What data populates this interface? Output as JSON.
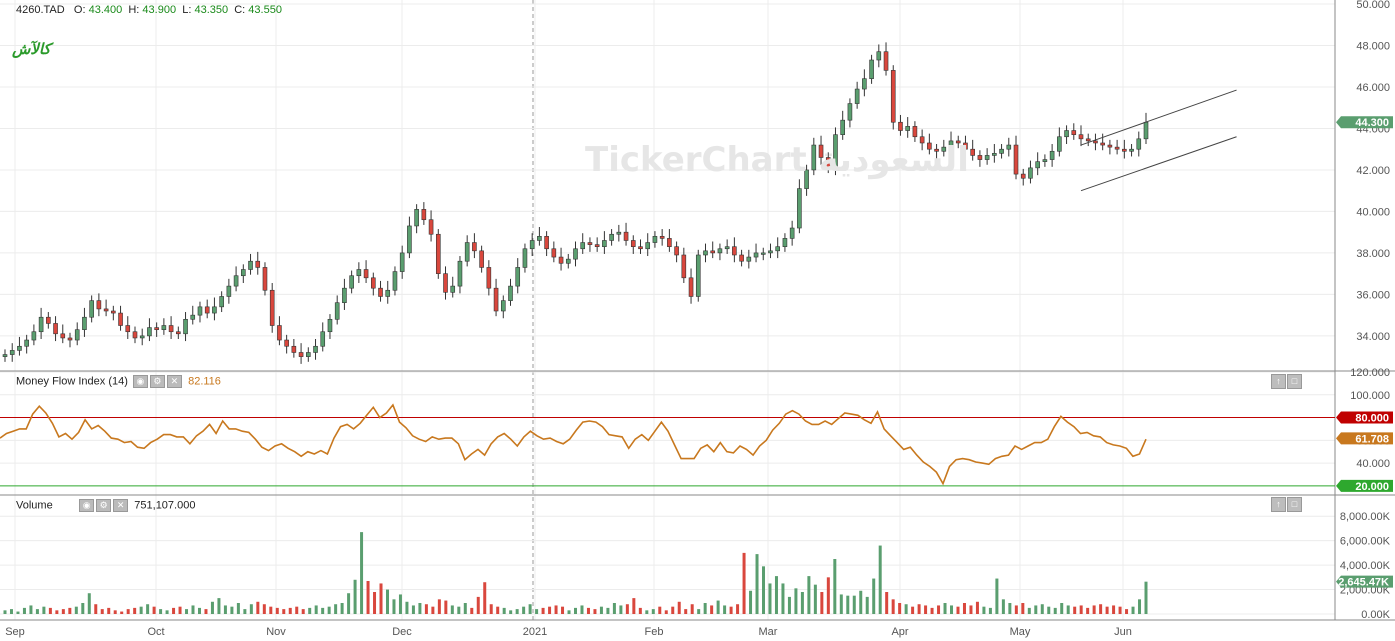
{
  "header": {
    "symbol": "4260.TAD",
    "open_label": "O:",
    "open": "43.400",
    "high_label": "H:",
    "high": "43.900",
    "low_label": "L:",
    "low": "43.350",
    "close_label": "C:",
    "close": "43.550"
  },
  "logo_text": "كالآش",
  "watermark_text": "TickerChart السعودية",
  "colors": {
    "up": "#5a9e6f",
    "down": "#d9473d",
    "mfi_line": "#c8781e",
    "mfi_upper": "#c00000",
    "mfi_lower": "#2ea82e",
    "last_price_badge": "#5a9e6f"
  },
  "mfi_panel": {
    "label": "Money Flow Index",
    "period": "(14)",
    "value": "82.116",
    "upper_badge": "80.000",
    "lower_badge": "20.000",
    "current_badge": "61.708"
  },
  "volume_panel": {
    "label": "Volume",
    "value": "751,107.000",
    "current_badge": "2,645.47K"
  },
  "price_badge": "44.300",
  "chart_data": [
    {
      "type": "candlestick",
      "title": "4260.TAD",
      "x_labels": [
        "Sep",
        "Oct",
        "Nov",
        "Dec",
        "2021",
        "Feb",
        "Mar",
        "Apr",
        "May",
        "Jun"
      ],
      "y_ticks": [
        "34.000",
        "36.000",
        "38.000",
        "40.000",
        "42.000",
        "44.000",
        "46.000",
        "48.000",
        "50.000"
      ],
      "ylim": [
        32.5,
        50.0
      ],
      "close_series": [
        33.1,
        33.3,
        33.5,
        33.8,
        34.2,
        34.9,
        34.6,
        34.1,
        33.9,
        33.8,
        34.3,
        34.9,
        35.7,
        35.3,
        35.2,
        35.1,
        34.5,
        34.2,
        33.9,
        34.0,
        34.4,
        34.3,
        34.5,
        34.2,
        34.1,
        34.8,
        35.0,
        35.4,
        35.1,
        35.4,
        35.9,
        36.4,
        36.9,
        37.2,
        37.6,
        37.3,
        36.2,
        34.5,
        33.8,
        33.5,
        33.2,
        33.0,
        33.2,
        33.5,
        34.2,
        34.8,
        35.6,
        36.3,
        36.9,
        37.2,
        36.8,
        36.3,
        35.9,
        36.2,
        37.1,
        38.0,
        39.3,
        40.1,
        39.6,
        38.9,
        37.0,
        36.1,
        36.4,
        37.6,
        38.5,
        38.1,
        37.3,
        36.3,
        35.2,
        35.7,
        36.4,
        37.3,
        38.2,
        38.6,
        38.8,
        38.2,
        37.8,
        37.5,
        37.7,
        38.2,
        38.5,
        38.4,
        38.3,
        38.6,
        38.9,
        39.0,
        38.6,
        38.3,
        38.2,
        38.5,
        38.8,
        38.7,
        38.3,
        37.9,
        36.8,
        35.9,
        37.9,
        38.1,
        38.0,
        38.2,
        38.3,
        37.9,
        37.6,
        37.8,
        38.0,
        38.0,
        38.1,
        38.3,
        38.7,
        39.2,
        41.1,
        42.0,
        43.2,
        42.6,
        42.1,
        43.7,
        44.4,
        45.2,
        45.9,
        46.4,
        47.3,
        47.7,
        46.8,
        44.3,
        43.9,
        44.1,
        43.6,
        43.3,
        43.0,
        42.9,
        43.1,
        43.4,
        43.3,
        43.0,
        42.7,
        42.5,
        42.7,
        42.8,
        43.0,
        43.2,
        41.8,
        41.6,
        42.1,
        42.4,
        42.5,
        42.9,
        43.6,
        43.9,
        43.7,
        43.5,
        43.4,
        43.3,
        43.2,
        43.1,
        43.0,
        42.9,
        43.0,
        43.5,
        44.3
      ],
      "trendline_note": "parallel ascending channel drawn from May to Jun"
    },
    {
      "type": "line",
      "title": "Money Flow Index (14)",
      "y_ticks": [
        "40.000",
        "60.000",
        "80.000",
        "100.000",
        "120.000"
      ],
      "ylim": [
        12,
        120
      ],
      "reference_lines": [
        80,
        20
      ],
      "values": [
        62,
        66,
        68,
        70,
        70,
        83,
        90,
        84,
        75,
        63,
        66,
        61,
        67,
        78,
        70,
        73,
        68,
        62,
        61,
        58,
        59,
        54,
        53,
        58,
        61,
        65,
        65,
        63,
        63,
        57,
        64,
        68,
        74,
        66,
        77,
        70,
        70,
        68,
        67,
        61,
        54,
        51,
        55,
        57,
        53,
        50,
        46,
        50,
        48,
        51,
        48,
        62,
        72,
        74,
        70,
        75,
        82,
        89,
        80,
        84,
        91,
        76,
        71,
        64,
        61,
        59,
        63,
        61,
        62,
        62,
        57,
        43,
        48,
        52,
        47,
        57,
        63,
        66,
        61,
        55,
        63,
        68,
        64,
        61,
        62,
        59,
        57,
        61,
        69,
        76,
        77,
        76,
        72,
        65,
        64,
        63,
        53,
        61,
        65,
        60,
        68,
        76,
        68,
        56,
        44,
        44,
        44,
        53,
        56,
        50,
        58,
        50,
        49,
        55,
        52,
        47,
        55,
        60,
        69,
        75,
        83,
        86,
        83,
        77,
        74,
        74,
        77,
        74,
        79,
        84,
        83,
        82,
        78,
        75,
        85,
        70,
        64,
        58,
        52,
        54,
        47,
        41,
        37,
        32,
        22,
        37,
        43,
        44,
        43,
        41,
        40,
        39,
        44,
        46,
        47,
        55,
        52,
        55,
        58,
        58,
        61,
        72,
        81,
        76,
        72,
        66,
        67,
        64,
        63,
        58,
        56,
        55,
        53,
        46,
        48,
        61
      ],
      "current": 61.708
    },
    {
      "type": "bar",
      "title": "Volume",
      "unit": "K",
      "y_ticks": [
        "0.00K",
        "2,000.00K",
        "4,000.00K",
        "6,000.00K",
        "8,000.00K"
      ],
      "ylim": [
        0,
        9000
      ],
      "values": [
        300,
        400,
        200,
        500,
        700,
        400,
        600,
        500,
        300,
        400,
        500,
        600,
        900,
        1700,
        800,
        400,
        500,
        300,
        200,
        400,
        500,
        600,
        800,
        600,
        400,
        300,
        500,
        600,
        400,
        700,
        500,
        400,
        1000,
        1300,
        700,
        600,
        900,
        400,
        800,
        1000,
        800,
        600,
        500,
        400,
        500,
        600,
        400,
        500,
        700,
        500,
        600,
        800,
        900,
        1700,
        2800,
        6700,
        2700,
        1800,
        2500,
        2000,
        1200,
        1600,
        1000,
        700,
        900,
        800,
        600,
        1200,
        1100,
        700,
        600,
        900,
        500,
        1400,
        2600,
        800,
        600,
        500,
        300,
        400,
        600,
        800,
        400,
        500,
        600,
        700,
        600,
        300,
        500,
        700,
        500,
        400,
        600,
        500,
        900,
        700,
        800,
        1300,
        500,
        300,
        400,
        600,
        300,
        600,
        1000,
        400,
        800,
        400,
        900,
        700,
        1100,
        700,
        600,
        800,
        5000,
        1900,
        4900,
        3900,
        2500,
        3100,
        2500,
        1400,
        2100,
        1800,
        3100,
        2400,
        1800,
        3000,
        4500,
        1600,
        1500,
        1500,
        1900,
        1400,
        2900,
        5600,
        1800,
        1200,
        900,
        800,
        600,
        800,
        700,
        500,
        700,
        900,
        700,
        600,
        900,
        700,
        1000,
        600,
        500,
        2900,
        1200,
        900,
        700,
        900,
        500,
        700,
        800,
        600,
        500,
        900,
        700,
        600,
        700,
        500,
        700,
        800,
        600,
        700,
        600,
        400,
        600,
        1200,
        2645
      ]
    }
  ]
}
